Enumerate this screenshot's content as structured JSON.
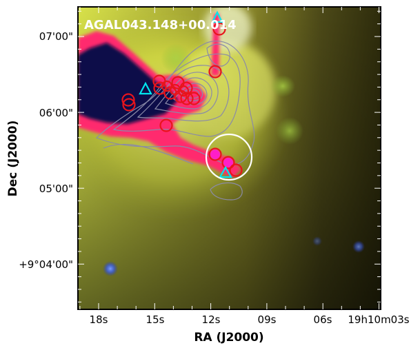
{
  "figure": {
    "title": "AGAL043.148+00.014",
    "x_axis_label": "RA (J2000)",
    "y_axis_label": "Dec (J2000)",
    "x_ticks": [
      "18s",
      "15s",
      "12s",
      "09s",
      "06s",
      "19h10m03s"
    ],
    "y_ticks": [
      "07'00\"",
      "06'00\"",
      "05'00\"",
      "+9°04'00\""
    ],
    "colors": {
      "contour": "#8a8aa8",
      "red_circle": "#e8141c",
      "cyan_triangle": "#00e5ee",
      "white_circle": "#ffffff",
      "magenta_filament": "#ff2a6e"
    },
    "markers": {
      "red_circles": 19,
      "cyan_triangles": 3,
      "white_circles": 1
    }
  }
}
